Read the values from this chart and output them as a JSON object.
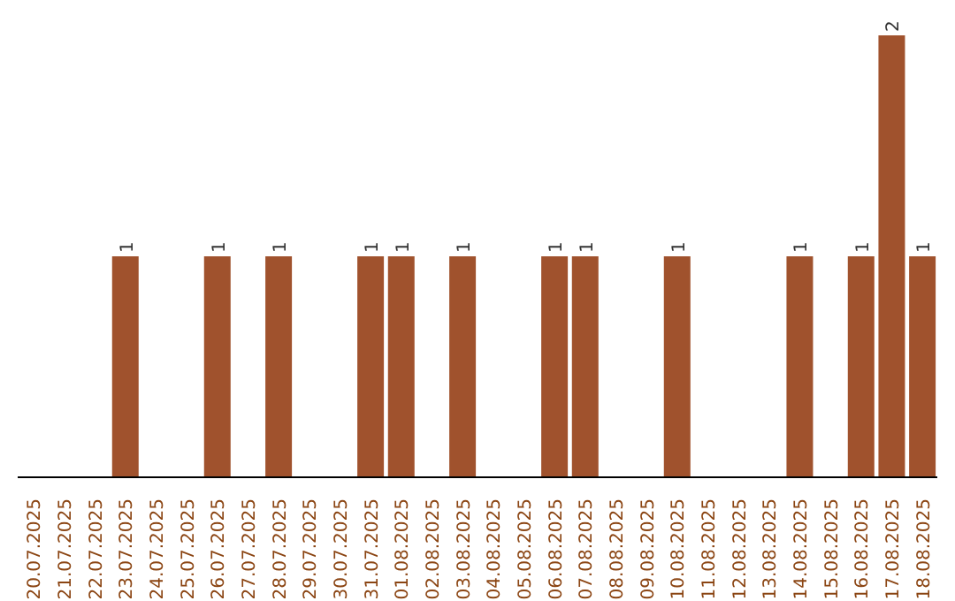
{
  "chart_data": {
    "type": "bar",
    "categories": [
      "20.07.2025",
      "21.07.2025",
      "22.07.2025",
      "23.07.2025",
      "24.07.2025",
      "25.07.2025",
      "26.07.2025",
      "27.07.2025",
      "28.07.2025",
      "29.07.2025",
      "30.07.2025",
      "31.07.2025",
      "01.08.2025",
      "02.08.2025",
      "03.08.2025",
      "04.08.2025",
      "05.08.2025",
      "06.08.2025",
      "07.08.2025",
      "08.08.2025",
      "09.08.2025",
      "10.08.2025",
      "11.08.2025",
      "12.08.2025",
      "13.08.2025",
      "14.08.2025",
      "15.08.2025",
      "16.08.2025",
      "17.08.2025",
      "18.08.2025"
    ],
    "values": [
      0,
      0,
      0,
      1,
      0,
      0,
      1,
      0,
      1,
      0,
      0,
      1,
      1,
      0,
      1,
      0,
      0,
      1,
      1,
      0,
      0,
      1,
      0,
      0,
      0,
      1,
      0,
      1,
      2,
      1
    ],
    "value_labels": [
      null,
      null,
      null,
      "1",
      null,
      null,
      "1",
      null,
      "1",
      null,
      null,
      "1",
      "1",
      null,
      "1",
      null,
      null,
      "1",
      "1",
      null,
      null,
      "1",
      null,
      null,
      null,
      "1",
      null,
      "1",
      "2",
      "1"
    ],
    "color": "#a0522d",
    "grid": false,
    "legend": false
  }
}
